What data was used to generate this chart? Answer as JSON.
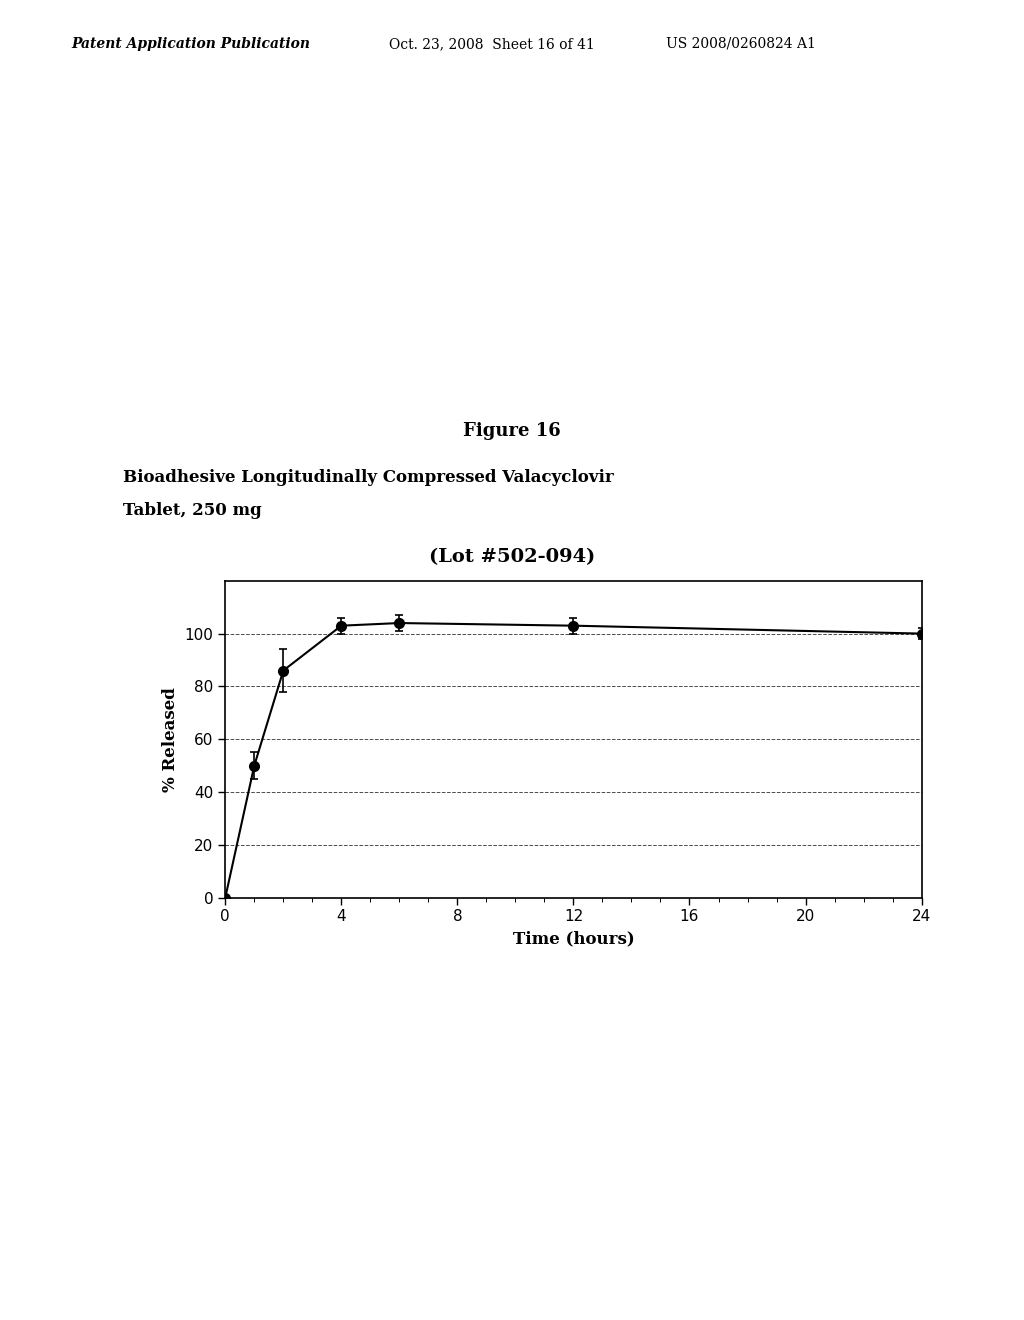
{
  "header_left": "Patent Application Publication",
  "header_mid": "Oct. 23, 2008  Sheet 16 of 41",
  "header_right": "US 2008/0260824 A1",
  "figure_label": "Figure 16",
  "title_line1": "Bioadhesive Longitudinally Compressed Valacyclovir",
  "title_line2": "Tablet, 250 mg",
  "subtitle": "(Lot #502-094)",
  "xlabel": "Time (hours)",
  "ylabel": "% Released",
  "x_data": [
    0,
    1,
    2,
    4,
    6,
    12,
    24
  ],
  "y_data": [
    0,
    50,
    86,
    103,
    104,
    103,
    100
  ],
  "y_err": [
    0,
    5,
    8,
    3,
    3,
    3,
    2
  ],
  "xlim": [
    0,
    24
  ],
  "ylim": [
    0,
    120
  ],
  "yticks": [
    0,
    20,
    40,
    60,
    80,
    100
  ],
  "xticks": [
    0,
    4,
    8,
    12,
    16,
    20,
    24
  ],
  "grid_y_values": [
    20,
    40,
    60,
    80,
    100
  ],
  "marker_color": "black",
  "line_color": "black",
  "background_color": "white",
  "plot_bg_color": "white"
}
